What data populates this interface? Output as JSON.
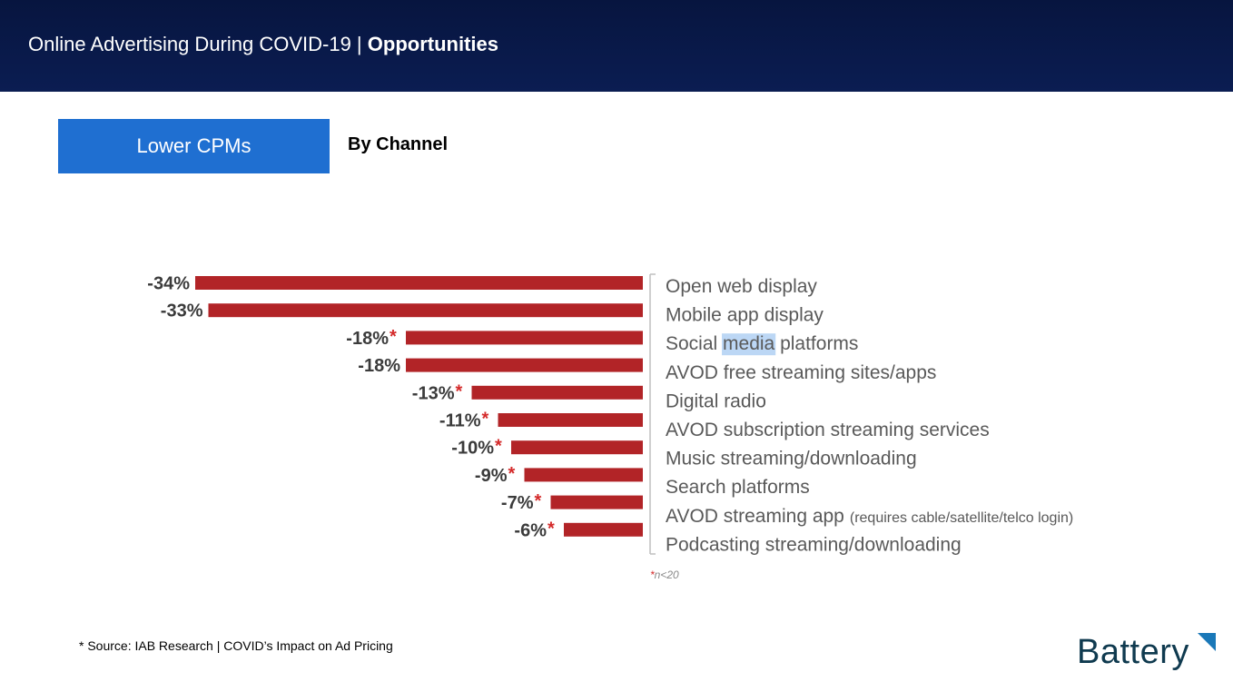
{
  "header": {
    "title_regular": "Online Advertising During COVID-19 | ",
    "title_bold": "Opportunities"
  },
  "tag": {
    "label": "Lower CPMs"
  },
  "subtitle": "By Channel",
  "chart_data": {
    "type": "bar",
    "orientation": "horizontal",
    "direction": "leftward",
    "categories": [
      "Open web display",
      "Mobile app display",
      "Social media platforms",
      "AVOD free streaming sites/apps",
      "Digital radio",
      "AVOD subscription streaming services",
      "Music streaming/downloading",
      "Search platforms",
      "AVOD streaming app",
      "Podcasting streaming/downloading"
    ],
    "category_notes": [
      "",
      "",
      "",
      "",
      "",
      "",
      "",
      "",
      "(requires cable/satellite/telco login)",
      ""
    ],
    "values": [
      -34,
      -33,
      -18,
      -18,
      -13,
      -11,
      -10,
      -9,
      -7,
      -6
    ],
    "labels": [
      "-34%",
      "-33%",
      "-18%",
      "-18%",
      "-13%",
      "-11%",
      "-10%",
      "-9%",
      "-7%",
      "-6%"
    ],
    "low_sample_flag": [
      false,
      false,
      true,
      false,
      true,
      true,
      true,
      true,
      true,
      true
    ],
    "highlighted_word": "media",
    "footnote_marker": "*",
    "footnote": "n<20",
    "xlim": [
      -34,
      0
    ],
    "colors": {
      "bar": "#b22427",
      "asterisk": "#d42a2a",
      "label": "#3b3b3b",
      "category": "#595959",
      "highlight": "#bcd7f5"
    }
  },
  "source": "* Source: IAB Research | COVID’s Impact on Ad Pricing",
  "logo": {
    "text": "Battery",
    "color": "#0f3a4f",
    "mark_color": "#1a78b8"
  }
}
